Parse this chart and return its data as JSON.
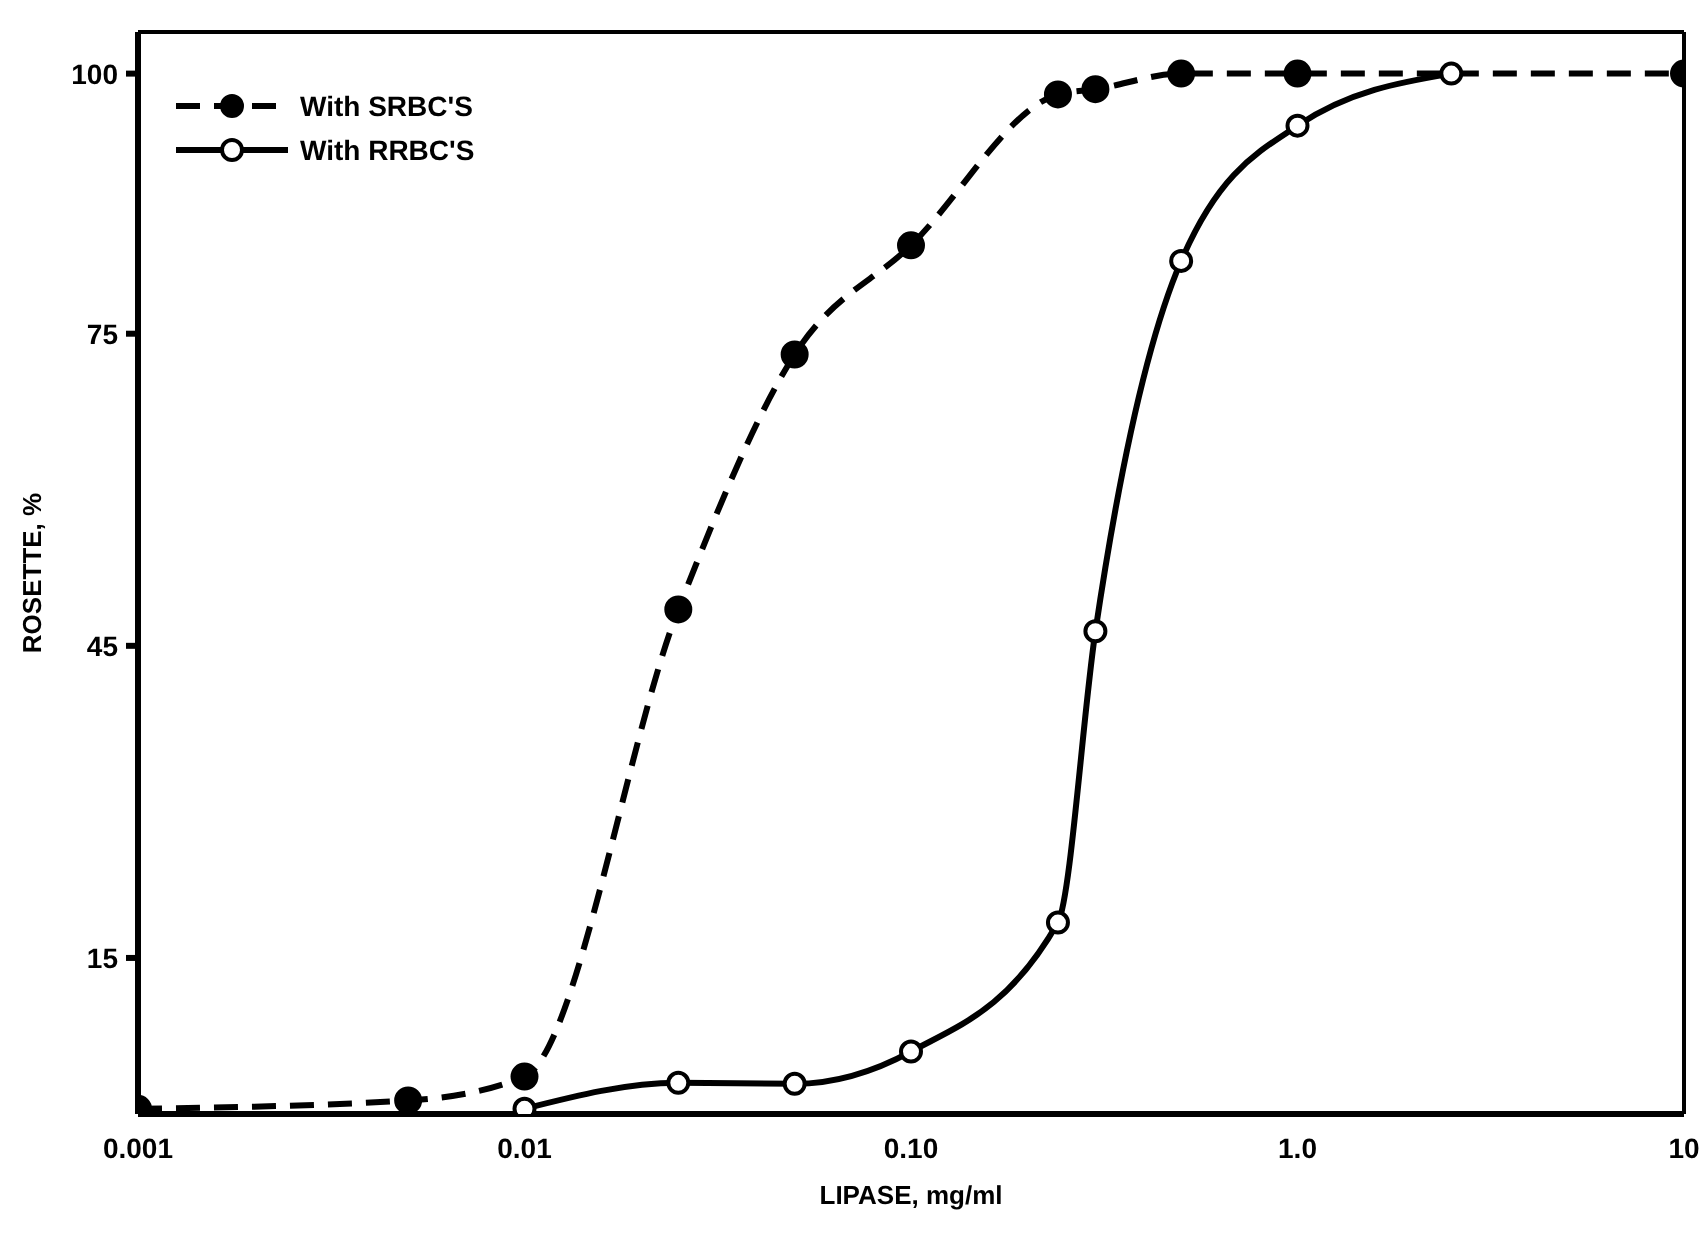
{
  "chart_data": {
    "type": "line",
    "xlabel": "LIPASE, mg/ml",
    "ylabel": "ROSETTE, %",
    "log": "x",
    "xlim": [
      0.001,
      10
    ],
    "xticks": [
      0.001,
      0.01,
      {
        "value": 0.1,
        "label": "0.10"
      },
      {
        "value": 1,
        "label": "1.0"
      },
      10
    ],
    "ylim": [
      0,
      104
    ],
    "yticks": [
      15,
      45,
      75,
      100
    ],
    "legend": "top left",
    "marker": "circle",
    "series": [
      {
        "name": "With SRBC'S",
        "color": "#000000",
        "line_style": "dashed",
        "x": [
          0.001,
          0.005,
          0.01,
          0.025,
          0.05,
          0.1,
          0.24,
          0.3,
          0.5,
          1,
          10
        ],
        "values": [
          0.5,
          1.3,
          3.6,
          48.5,
          73,
          83.5,
          98,
          98.5,
          100,
          100,
          100
        ]
      },
      {
        "name": "With RRBC'S",
        "color": "#000000",
        "line_style": "solid",
        "x": [
          0.01,
          0.025,
          0.05,
          0.1,
          0.24,
          0.3,
          0.5,
          1,
          2.5
        ],
        "values": [
          0.5,
          3,
          2.9,
          6,
          18.4,
          46.4,
          82,
          95,
          100
        ]
      }
    ]
  }
}
